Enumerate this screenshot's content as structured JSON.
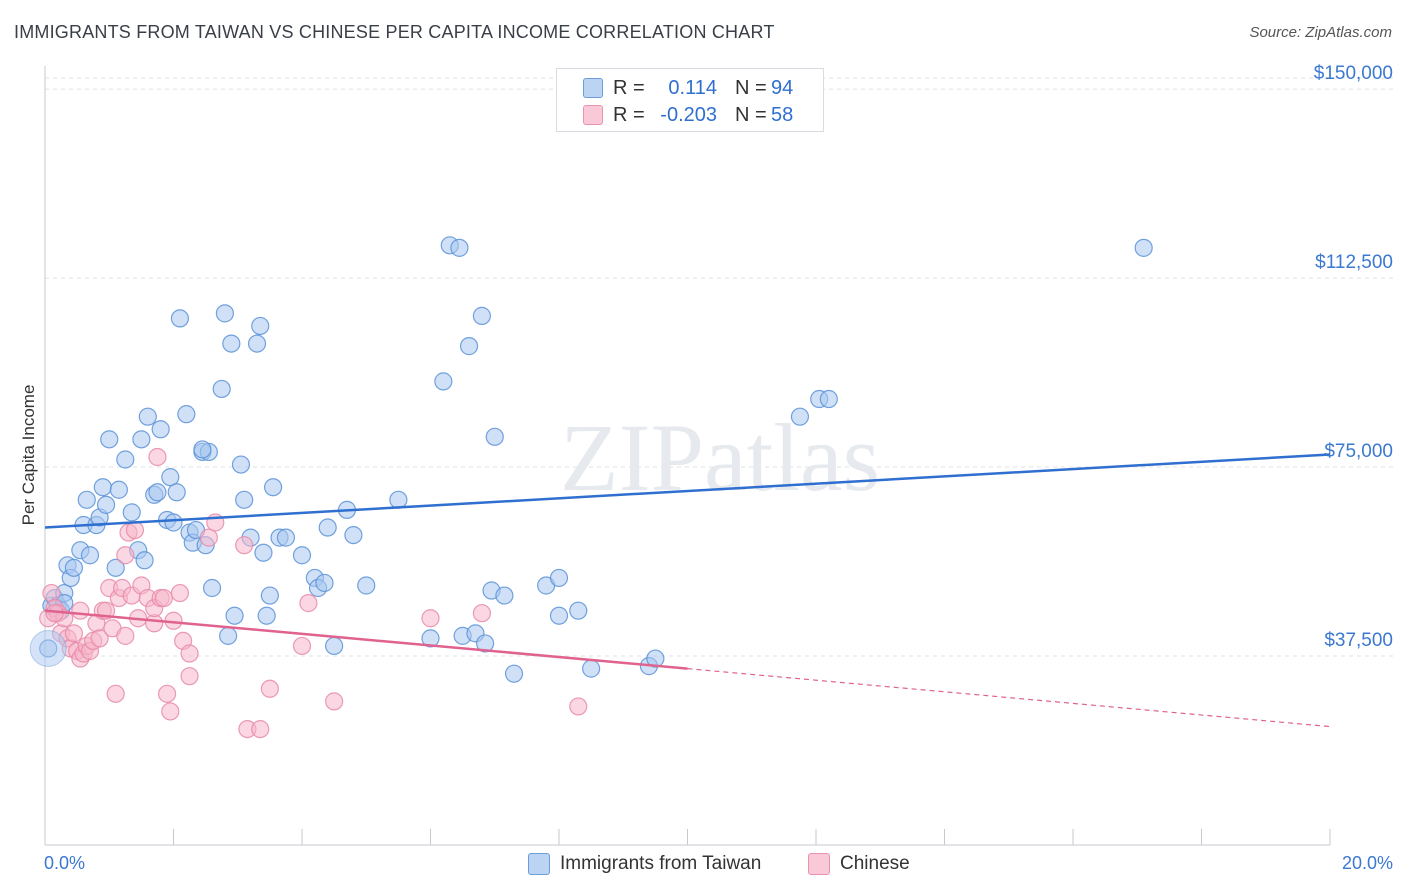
{
  "title": "IMMIGRANTS FROM TAIWAN VS CHINESE PER CAPITA INCOME CORRELATION CHART",
  "source": "Source: ZipAtlas.com",
  "watermark": "ZIPatlas",
  "colors": {
    "taiwan_fill": "#a9c8f0",
    "taiwan_stroke": "#5b92d8",
    "taiwan_line": "#2f6fd0",
    "chinese_fill": "#f6b6cb",
    "chinese_stroke": "#e88aa8",
    "chinese_line": "#e0628e",
    "axis_text": "#3b78d0",
    "grid": "#dde1e6"
  },
  "legend": {
    "rows": [
      {
        "r_label": "R =",
        "r_value": "0.114",
        "n_label": "N =",
        "n_value": "94"
      },
      {
        "r_label": "R =",
        "r_value": "-0.203",
        "n_label": "N =",
        "n_value": "58"
      }
    ]
  },
  "bottom_legend": {
    "taiwan": "Immigrants from Taiwan",
    "chinese": "Chinese"
  },
  "chart_data": {
    "type": "scatter",
    "title": "IMMIGRANTS FROM TAIWAN VS CHINESE PER CAPITA INCOME CORRELATION CHART",
    "xlabel": "",
    "ylabel": "Per Capita Income",
    "xlim": [
      0,
      20
    ],
    "ylim": [
      0,
      153000
    ],
    "x_tick_labels": [
      "0.0%",
      "20.0%"
    ],
    "y_ticks": [
      37500,
      75000,
      112500,
      150000
    ],
    "y_tick_labels": [
      "$37,500",
      "$75,000",
      "$112,500",
      "$150,000"
    ],
    "grid": true,
    "legend_position": "top-center",
    "series": [
      {
        "name": "Immigrants from Taiwan",
        "r": 0.114,
        "n": 94,
        "trend": {
          "x0": 0,
          "y0": 63000,
          "x1": 20,
          "y1": 77500,
          "solid_to": 20
        },
        "points": [
          [
            0.05,
            39000
          ],
          [
            0.1,
            47500
          ],
          [
            0.15,
            49000
          ],
          [
            0.2,
            47500
          ],
          [
            0.25,
            46500
          ],
          [
            0.3,
            50000
          ],
          [
            0.35,
            55500
          ],
          [
            0.4,
            53000
          ],
          [
            0.45,
            55000
          ],
          [
            0.55,
            58500
          ],
          [
            0.6,
            63500
          ],
          [
            0.65,
            68500
          ],
          [
            0.7,
            57500
          ],
          [
            0.8,
            63500
          ],
          [
            0.85,
            65000
          ],
          [
            0.9,
            71000
          ],
          [
            0.95,
            67500
          ],
          [
            1.0,
            80500
          ],
          [
            1.1,
            55000
          ],
          [
            1.15,
            70500
          ],
          [
            1.25,
            76500
          ],
          [
            1.35,
            66000
          ],
          [
            1.45,
            58500
          ],
          [
            1.5,
            80500
          ],
          [
            1.55,
            56500
          ],
          [
            1.6,
            85000
          ],
          [
            1.7,
            69500
          ],
          [
            1.75,
            70000
          ],
          [
            1.8,
            82500
          ],
          [
            1.9,
            64500
          ],
          [
            1.95,
            73000
          ],
          [
            2.0,
            64000
          ],
          [
            2.05,
            70000
          ],
          [
            2.1,
            104500
          ],
          [
            2.2,
            85500
          ],
          [
            2.25,
            62000
          ],
          [
            2.3,
            60000
          ],
          [
            2.35,
            62500
          ],
          [
            2.45,
            78000
          ],
          [
            2.5,
            59500
          ],
          [
            2.55,
            78000
          ],
          [
            2.6,
            51000
          ],
          [
            2.75,
            90500
          ],
          [
            2.8,
            105500
          ],
          [
            2.85,
            41500
          ],
          [
            2.9,
            99500
          ],
          [
            2.95,
            45500
          ],
          [
            3.05,
            75500
          ],
          [
            3.1,
            68500
          ],
          [
            3.2,
            61000
          ],
          [
            3.3,
            99500
          ],
          [
            3.35,
            103000
          ],
          [
            3.4,
            58000
          ],
          [
            3.45,
            45500
          ],
          [
            3.5,
            49500
          ],
          [
            3.55,
            71000
          ],
          [
            3.65,
            61000
          ],
          [
            3.75,
            61000
          ],
          [
            4.0,
            57500
          ],
          [
            4.2,
            53000
          ],
          [
            4.25,
            51000
          ],
          [
            4.35,
            52000
          ],
          [
            4.4,
            63000
          ],
          [
            4.5,
            39500
          ],
          [
            4.7,
            66500
          ],
          [
            4.8,
            61500
          ],
          [
            5.0,
            51500
          ],
          [
            5.5,
            68500
          ],
          [
            6.0,
            41000
          ],
          [
            6.2,
            92000
          ],
          [
            6.3,
            119000
          ],
          [
            6.45,
            118500
          ],
          [
            6.5,
            41500
          ],
          [
            6.6,
            99000
          ],
          [
            6.7,
            42000
          ],
          [
            6.8,
            105000
          ],
          [
            6.85,
            40000
          ],
          [
            6.95,
            50500
          ],
          [
            7.0,
            81000
          ],
          [
            7.15,
            49500
          ],
          [
            7.3,
            34000
          ],
          [
            7.8,
            51500
          ],
          [
            8.0,
            53000
          ],
          [
            8.0,
            45500
          ],
          [
            8.3,
            46500
          ],
          [
            8.5,
            35000
          ],
          [
            9.4,
            35500
          ],
          [
            9.5,
            37000
          ],
          [
            11.75,
            85000
          ],
          [
            12.05,
            88500
          ],
          [
            12.2,
            88500
          ],
          [
            17.1,
            118500
          ],
          [
            0.3,
            48000
          ],
          [
            2.45,
            78500
          ]
        ]
      },
      {
        "name": "Chinese",
        "r": -0.203,
        "n": 58,
        "trend": {
          "x0": 0,
          "y0": 46500,
          "x1": 20,
          "y1": 23500,
          "solid_to": 10
        },
        "points": [
          [
            0.05,
            45000
          ],
          [
            0.1,
            50000
          ],
          [
            0.15,
            47000
          ],
          [
            0.2,
            46000
          ],
          [
            0.25,
            42000
          ],
          [
            0.3,
            45000
          ],
          [
            0.35,
            41000
          ],
          [
            0.4,
            39000
          ],
          [
            0.45,
            42000
          ],
          [
            0.5,
            38500
          ],
          [
            0.55,
            37000
          ],
          [
            0.6,
            38000
          ],
          [
            0.65,
            39500
          ],
          [
            0.7,
            38500
          ],
          [
            0.75,
            40500
          ],
          [
            0.8,
            44000
          ],
          [
            0.85,
            41000
          ],
          [
            0.9,
            46500
          ],
          [
            0.95,
            46500
          ],
          [
            1.0,
            51000
          ],
          [
            1.05,
            43000
          ],
          [
            1.1,
            30000
          ],
          [
            1.15,
            49000
          ],
          [
            1.2,
            51000
          ],
          [
            1.25,
            41500
          ],
          [
            1.3,
            62000
          ],
          [
            1.35,
            49500
          ],
          [
            1.4,
            62500
          ],
          [
            1.45,
            45000
          ],
          [
            1.5,
            51500
          ],
          [
            1.6,
            49000
          ],
          [
            1.7,
            44000
          ],
          [
            1.7,
            47000
          ],
          [
            1.75,
            77000
          ],
          [
            1.8,
            49000
          ],
          [
            1.85,
            49000
          ],
          [
            1.9,
            30000
          ],
          [
            1.95,
            26500
          ],
          [
            2.0,
            44500
          ],
          [
            2.1,
            50000
          ],
          [
            2.15,
            40500
          ],
          [
            2.25,
            38000
          ],
          [
            2.25,
            33500
          ],
          [
            2.55,
            61000
          ],
          [
            2.65,
            64000
          ],
          [
            3.1,
            59500
          ],
          [
            3.15,
            23000
          ],
          [
            3.35,
            23000
          ],
          [
            3.5,
            31000
          ],
          [
            4.0,
            39500
          ],
          [
            4.1,
            48000
          ],
          [
            4.5,
            28500
          ],
          [
            6.0,
            45000
          ],
          [
            6.8,
            46000
          ],
          [
            8.3,
            27500
          ],
          [
            1.25,
            57500
          ],
          [
            0.55,
            46500
          ],
          [
            0.15,
            46000
          ]
        ]
      }
    ]
  }
}
